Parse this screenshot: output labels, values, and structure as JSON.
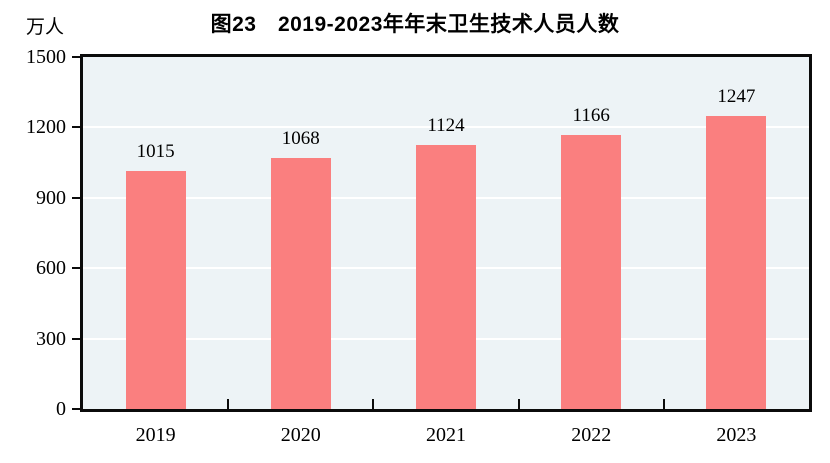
{
  "figure_title": "图23　2019-2023年年末卫生技术人员人数",
  "chart_data": {
    "type": "bar",
    "title": "图23　2019-2023年年末卫生技术人员人数",
    "unit_label": "万人",
    "categories": [
      "2019",
      "2020",
      "2021",
      "2022",
      "2023"
    ],
    "values": [
      1015,
      1068,
      1124,
      1166,
      1247
    ],
    "data_labels_shown": true,
    "xlabel": "",
    "ylabel": "万人",
    "ylim": [
      0,
      1500
    ],
    "yticks": [
      0,
      300,
      600,
      900,
      1200,
      1500
    ],
    "grid": "horizontal",
    "legend_position": "none",
    "colors": {
      "bar_fill": "#fa7f7f",
      "plot_background": "#edf3f6",
      "gridline": "#ffffff",
      "axis_and_border": "#0b0b0b",
      "text": "#000000",
      "page_background": "#ffffff"
    }
  }
}
